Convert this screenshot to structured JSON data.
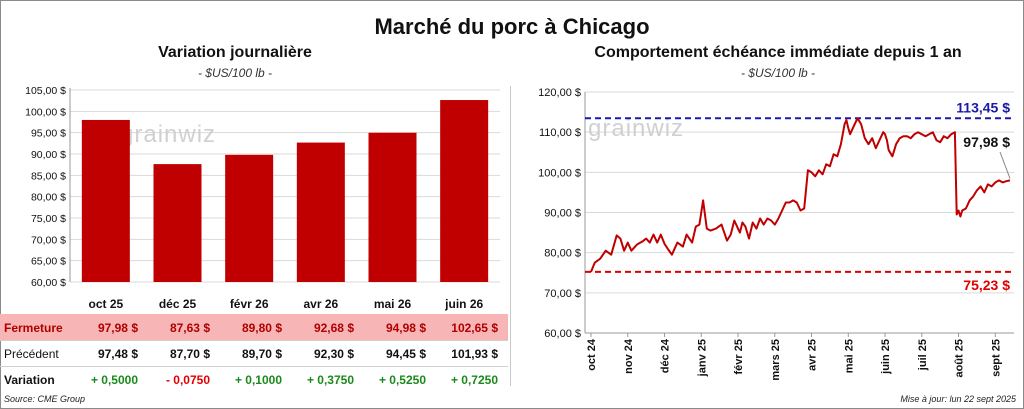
{
  "title": "Marché du porc à Chicago",
  "left_panel": {
    "title": "Variation journalière",
    "subtitle": "- $US/100 lb -",
    "watermark": "grainwiz",
    "table": {
      "rows": [
        {
          "label": "Fermeture",
          "values": [
            "97,98  $",
            "87,63  $",
            "89,80  $",
            "92,68  $",
            "94,98  $",
            "102,65  $"
          ]
        },
        {
          "label": "Précédent",
          "values": [
            "97,48  $",
            "87,70  $",
            "89,70  $",
            "92,30  $",
            "94,45  $",
            "101,93  $"
          ]
        },
        {
          "label": "Variation",
          "values": [
            "+ 0,5000",
            "- 0,0750",
            "+ 0,1000",
            "+ 0,3750",
            "+ 0,5250",
            "+ 0,7250"
          ]
        }
      ],
      "variation_colors": [
        "#1a8a1a",
        "#e00000",
        "#1a8a1a",
        "#1a8a1a",
        "#1a8a1a",
        "#1a8a1a"
      ]
    }
  },
  "right_panel": {
    "title": "Comportement  échéance immédiate depuis 1 an",
    "subtitle": "- $US/100 lb -",
    "watermark": "grainwiz",
    "max_label": "113,45 $",
    "min_label": "75,23 $",
    "last_label": "97,98 $"
  },
  "footer": {
    "source": "Source: CME Group",
    "updated": "Mise à jour: lun 22 sept 2025"
  },
  "chart_data": [
    {
      "type": "bar",
      "categories": [
        "oct 25",
        "déc 25",
        "févr 26",
        "avr 26",
        "mai 26",
        "juin 26"
      ],
      "values": [
        97.98,
        87.63,
        89.8,
        92.68,
        94.98,
        102.65
      ],
      "ylim": [
        60,
        105
      ],
      "yticks": [
        60,
        65,
        70,
        75,
        80,
        85,
        90,
        95,
        100,
        105
      ],
      "ytick_labels": [
        "60,00 $",
        "65,00 $",
        "70,00 $",
        "75,00 $",
        "80,00 $",
        "85,00 $",
        "90,00 $",
        "95,00 $",
        "100,00 $",
        "105,00 $"
      ],
      "grid": true,
      "color": "#c00000"
    },
    {
      "type": "line",
      "x_labels": [
        "oct 24",
        "nov 24",
        "déc 24",
        "janv 25",
        "févr 25",
        "mars 25",
        "avr 25",
        "mai 25",
        "juin 25",
        "juil 25",
        "août 25",
        "sept 25"
      ],
      "x": [
        0,
        0.1,
        0.25,
        0.4,
        0.55,
        0.7,
        0.8,
        0.9,
        1.0,
        1.1,
        1.25,
        1.4,
        1.5,
        1.6,
        1.7,
        1.8,
        1.9,
        2.0,
        2.1,
        2.2,
        2.35,
        2.5,
        2.6,
        2.75,
        2.85,
        2.95,
        3.05,
        3.15,
        3.25,
        3.4,
        3.55,
        3.7,
        3.8,
        3.9,
        4.0,
        4.05,
        4.12,
        4.2,
        4.3,
        4.4,
        4.5,
        4.6,
        4.7,
        4.8,
        4.9,
        5.0,
        5.1,
        5.2,
        5.3,
        5.4,
        5.5,
        5.6,
        5.7,
        5.8,
        5.9,
        6.0,
        6.1,
        6.2,
        6.3,
        6.4,
        6.5,
        6.6,
        6.7,
        6.8,
        6.9,
        6.95,
        7.0,
        7.05,
        7.15,
        7.25,
        7.35,
        7.45,
        7.55,
        7.65,
        7.75,
        7.85,
        7.95,
        8.0,
        8.05,
        8.1,
        8.2,
        8.3,
        8.4,
        8.5,
        8.6,
        8.7,
        8.8,
        8.9,
        9.0,
        9.1,
        9.2,
        9.3,
        9.4,
        9.5,
        9.6,
        9.7,
        9.8,
        9.9,
        9.95,
        10.0,
        10.05,
        10.1,
        10.2,
        10.3,
        10.4,
        10.5,
        10.6,
        10.7,
        10.8,
        10.9,
        11.0,
        11.1,
        11.2,
        11.3,
        11.4
      ],
      "y": [
        75.2,
        77.5,
        78.5,
        80.5,
        79.5,
        84.3,
        83.5,
        80.5,
        82.5,
        80.5,
        82.0,
        82.8,
        83.5,
        82.5,
        84.5,
        82.5,
        84.5,
        82.2,
        80.8,
        79.5,
        82.5,
        81.5,
        84.5,
        82.5,
        86.5,
        87.0,
        93.0,
        86.0,
        85.5,
        86.0,
        87.0,
        83.0,
        84.5,
        88.0,
        86.0,
        85.0,
        87.5,
        86.5,
        83.5,
        87.5,
        86.0,
        88.5,
        87.0,
        88.5,
        88.0,
        87.0,
        88.5,
        90.5,
        92.5,
        92.5,
        93.0,
        92.5,
        90.5,
        91.0,
        100.5,
        100.0,
        99.0,
        100.5,
        99.5,
        102.0,
        101.5,
        104.5,
        104.0,
        107.0,
        112.0,
        113.0,
        111.0,
        109.5,
        111.5,
        113.45,
        112.0,
        108.5,
        107.0,
        108.5,
        106.0,
        108.0,
        110.0,
        109.5,
        108.0,
        105.5,
        104.0,
        107.0,
        108.5,
        109.0,
        109.0,
        108.5,
        109.5,
        110.0,
        109.5,
        109.0,
        109.5,
        110.0,
        108.0,
        107.5,
        109.0,
        108.5,
        109.5,
        110.0,
        89.5,
        90.5,
        89.0,
        90.5,
        91.0,
        93.0,
        94.0,
        95.5,
        96.5,
        95.0,
        97.0,
        96.5,
        97.5,
        98.0,
        97.5,
        97.8,
        97.98
      ],
      "ylim": [
        60,
        120
      ],
      "yticks": [
        60,
        70,
        80,
        90,
        100,
        110,
        120
      ],
      "ytick_labels": [
        "60,00 $",
        "70,00 $",
        "80,00 $",
        "90,00 $",
        "100,00 $",
        "110,00 $",
        "120,00 $"
      ],
      "hlines": [
        {
          "value": 113.45,
          "color": "#1a1aaa",
          "label": "113,45 $"
        },
        {
          "value": 75.23,
          "color": "#e00000",
          "label": "75,23 $"
        }
      ],
      "grid": true,
      "color": "#c00000"
    }
  ]
}
